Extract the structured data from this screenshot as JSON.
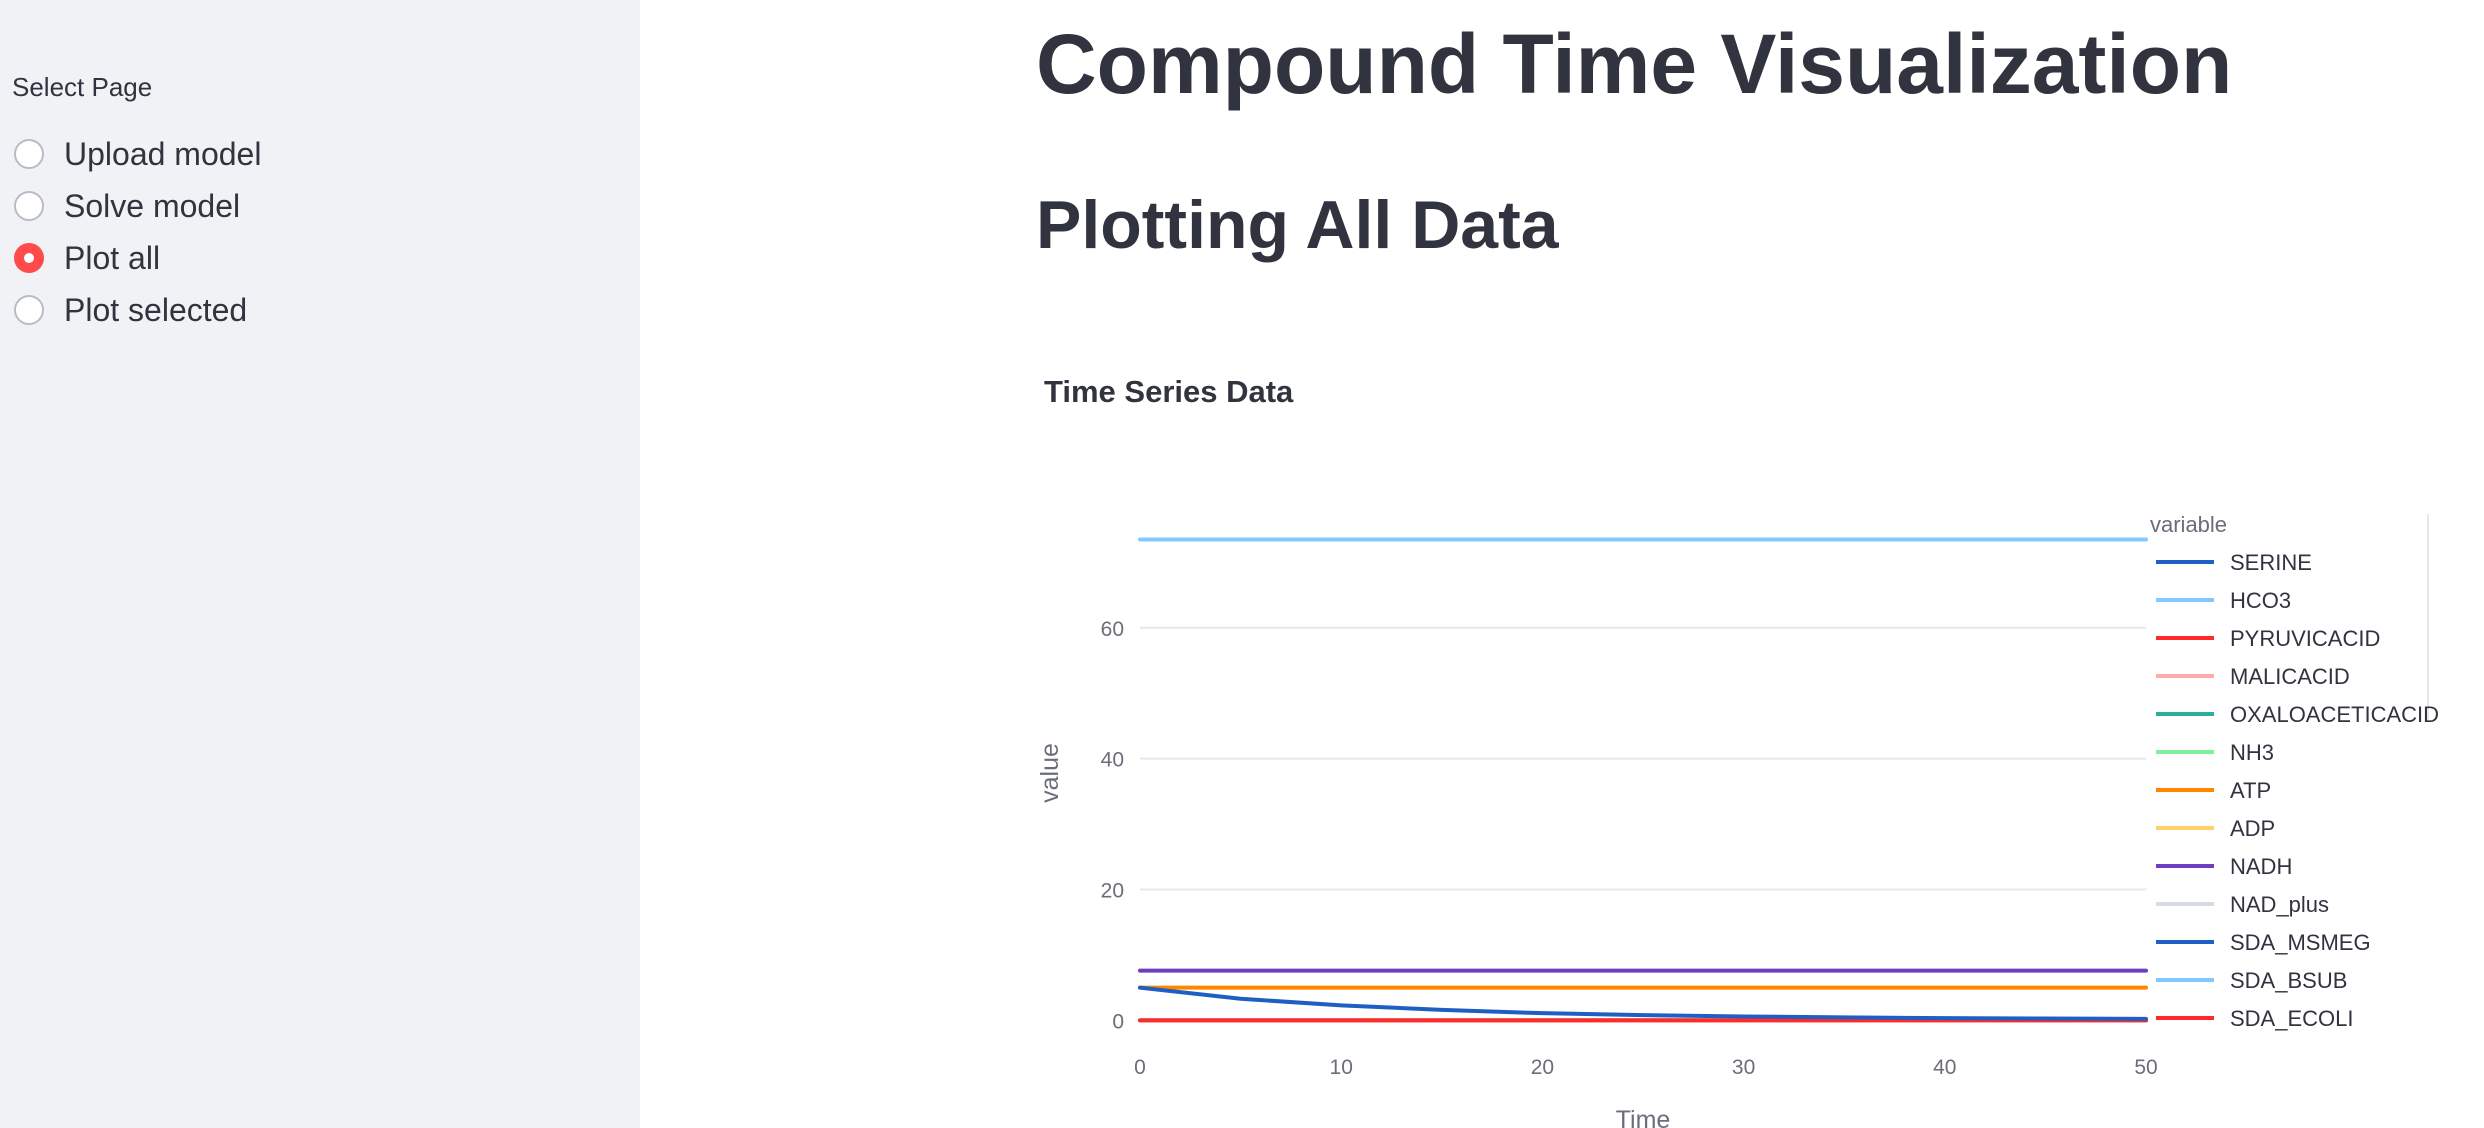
{
  "sidebar": {
    "label": "Select Page",
    "options": [
      {
        "label": "Upload model",
        "selected": false
      },
      {
        "label": "Solve model",
        "selected": false
      },
      {
        "label": "Plot all",
        "selected": true
      },
      {
        "label": "Plot selected",
        "selected": false
      }
    ]
  },
  "main": {
    "title": "Compound Time Visualization",
    "subtitle": "Plotting All Data"
  },
  "colors": {
    "accent": "#ff4b4b",
    "sidebar_bg": "#f0f2f6",
    "text": "#31333f"
  },
  "chart_data": {
    "type": "line",
    "title": "Time Series Data",
    "xlabel": "Time",
    "ylabel": "value",
    "xlim": [
      0,
      50
    ],
    "ylim": [
      -3,
      78
    ],
    "xticks": [
      0,
      10,
      20,
      30,
      40,
      50
    ],
    "yticks": [
      0,
      20,
      40,
      60
    ],
    "grid": true,
    "legend_title": "variable",
    "legend_position": "right",
    "series": [
      {
        "name": "SERINE",
        "color": "#1f5fc4",
        "x": [
          0,
          5,
          10,
          15,
          20,
          25,
          30,
          35,
          40,
          45,
          50
        ],
        "values": [
          5.0,
          3.3,
          2.3,
          1.6,
          1.1,
          0.8,
          0.6,
          0.45,
          0.35,
          0.28,
          0.22
        ]
      },
      {
        "name": "HCO3",
        "color": "#83c9ff",
        "x": [
          0,
          50
        ],
        "values": [
          73.5,
          73.5
        ]
      },
      {
        "name": "PYRUVICACID",
        "color": "#ff2b2b",
        "x": [
          0,
          50
        ],
        "values": [
          0,
          0
        ]
      },
      {
        "name": "MALICACID",
        "color": "#ffabab",
        "x": [
          0,
          50
        ],
        "values": [
          0,
          0
        ]
      },
      {
        "name": "OXALOACETICACID",
        "color": "#29b09d",
        "x": [
          0,
          50
        ],
        "values": [
          0,
          0
        ]
      },
      {
        "name": "NH3",
        "color": "#7defa1",
        "x": [
          0,
          50
        ],
        "values": [
          0,
          0
        ]
      },
      {
        "name": "ATP",
        "color": "#ff8700",
        "x": [
          0,
          50
        ],
        "values": [
          5.0,
          5.0
        ]
      },
      {
        "name": "ADP",
        "color": "#ffd16a",
        "x": [
          0,
          50
        ],
        "values": [
          0,
          0
        ]
      },
      {
        "name": "NADH",
        "color": "#6d3fc0",
        "x": [
          0,
          50
        ],
        "values": [
          7.6,
          7.6
        ]
      },
      {
        "name": "NAD_plus",
        "color": "#d5dae5",
        "x": [
          0,
          50
        ],
        "values": [
          0,
          0
        ]
      },
      {
        "name": "SDA_MSMEG",
        "color": "#1f5fc4",
        "x": [
          0,
          50
        ],
        "values": [
          0,
          0
        ]
      },
      {
        "name": "SDA_BSUB",
        "color": "#83c9ff",
        "x": [
          0,
          50
        ],
        "values": [
          0,
          0
        ]
      },
      {
        "name": "SDA_ECOLI",
        "color": "#ff2b2b",
        "x": [
          0,
          50
        ],
        "values": [
          0,
          0
        ]
      }
    ]
  }
}
